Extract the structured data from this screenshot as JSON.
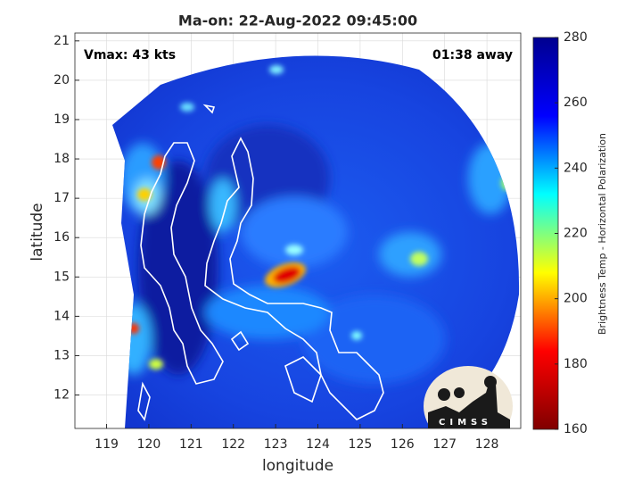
{
  "chart_data": {
    "type": "map",
    "title": "Ma-on: 22-Aug-2022 09:45:00",
    "xlabel": "longitude",
    "ylabel": "latitude",
    "annotations": [
      "Vmax: 43 kts",
      "01:38 away"
    ],
    "xlim": [
      118.25,
      128.8
    ],
    "ylim": [
      11.15,
      21.2
    ],
    "xticks": [
      119,
      120,
      121,
      122,
      123,
      124,
      125,
      126,
      127,
      128
    ],
    "yticks": [
      12,
      13,
      14,
      15,
      16,
      17,
      18,
      19,
      20,
      21
    ],
    "grid": true,
    "colorbar": {
      "label": "Brightness Temp - Horizontal Polarization",
      "lim": [
        160,
        280
      ],
      "ticks": [
        160,
        180,
        200,
        220,
        240,
        260,
        280
      ],
      "colormap": [
        "#800000",
        "#ff0000",
        "#ffff00",
        "#00ffff",
        "#0000ff",
        "#00008f"
      ]
    },
    "logo_text": "CIMSS"
  }
}
